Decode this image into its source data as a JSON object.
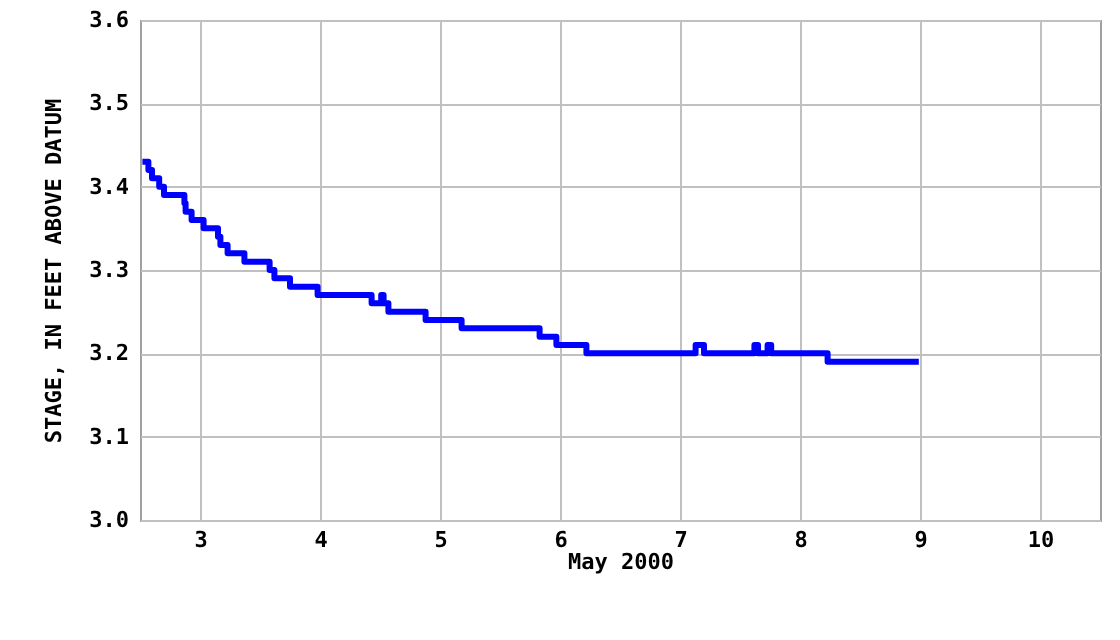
{
  "chart_data": {
    "type": "step",
    "xlabel": "May 2000",
    "ylabel": "STAGE, IN FEET ABOVE DATUM",
    "xlim": [
      2.5,
      10.5
    ],
    "xticks": [
      3,
      4,
      5,
      6,
      7,
      8,
      9,
      10
    ],
    "ylim": [
      3.0,
      3.6
    ],
    "yticks": [
      {
        "value": 3.0,
        "label": "3.0"
      },
      3.1,
      3.2,
      3.3,
      3.4,
      3.5,
      3.6
    ],
    "grid": true,
    "line_style": "solid",
    "marker": "none",
    "x": [
      2.52,
      2.57,
      2.6,
      2.66,
      2.7,
      2.87,
      2.88,
      2.93,
      3.03,
      3.15,
      3.17,
      3.23,
      3.37,
      3.58,
      3.62,
      3.75,
      3.98,
      4.43,
      4.51,
      4.53,
      4.57,
      4.88,
      5.18,
      5.83,
      5.97,
      6.22,
      7.13,
      7.2,
      7.62,
      7.65,
      7.73,
      7.76,
      8.23,
      8.99
    ],
    "series": [
      {
        "color": "#0000ff",
        "values": [
          3.43,
          3.42,
          3.41,
          3.4,
          3.39,
          3.38,
          3.37,
          3.36,
          3.35,
          3.34,
          3.33,
          3.32,
          3.31,
          3.3,
          3.29,
          3.28,
          3.27,
          3.26,
          3.27,
          3.26,
          3.25,
          3.24,
          3.23,
          3.22,
          3.21,
          3.2,
          3.21,
          3.2,
          3.21,
          3.2,
          3.21,
          3.2,
          3.19,
          3.19
        ]
      }
    ]
  }
}
